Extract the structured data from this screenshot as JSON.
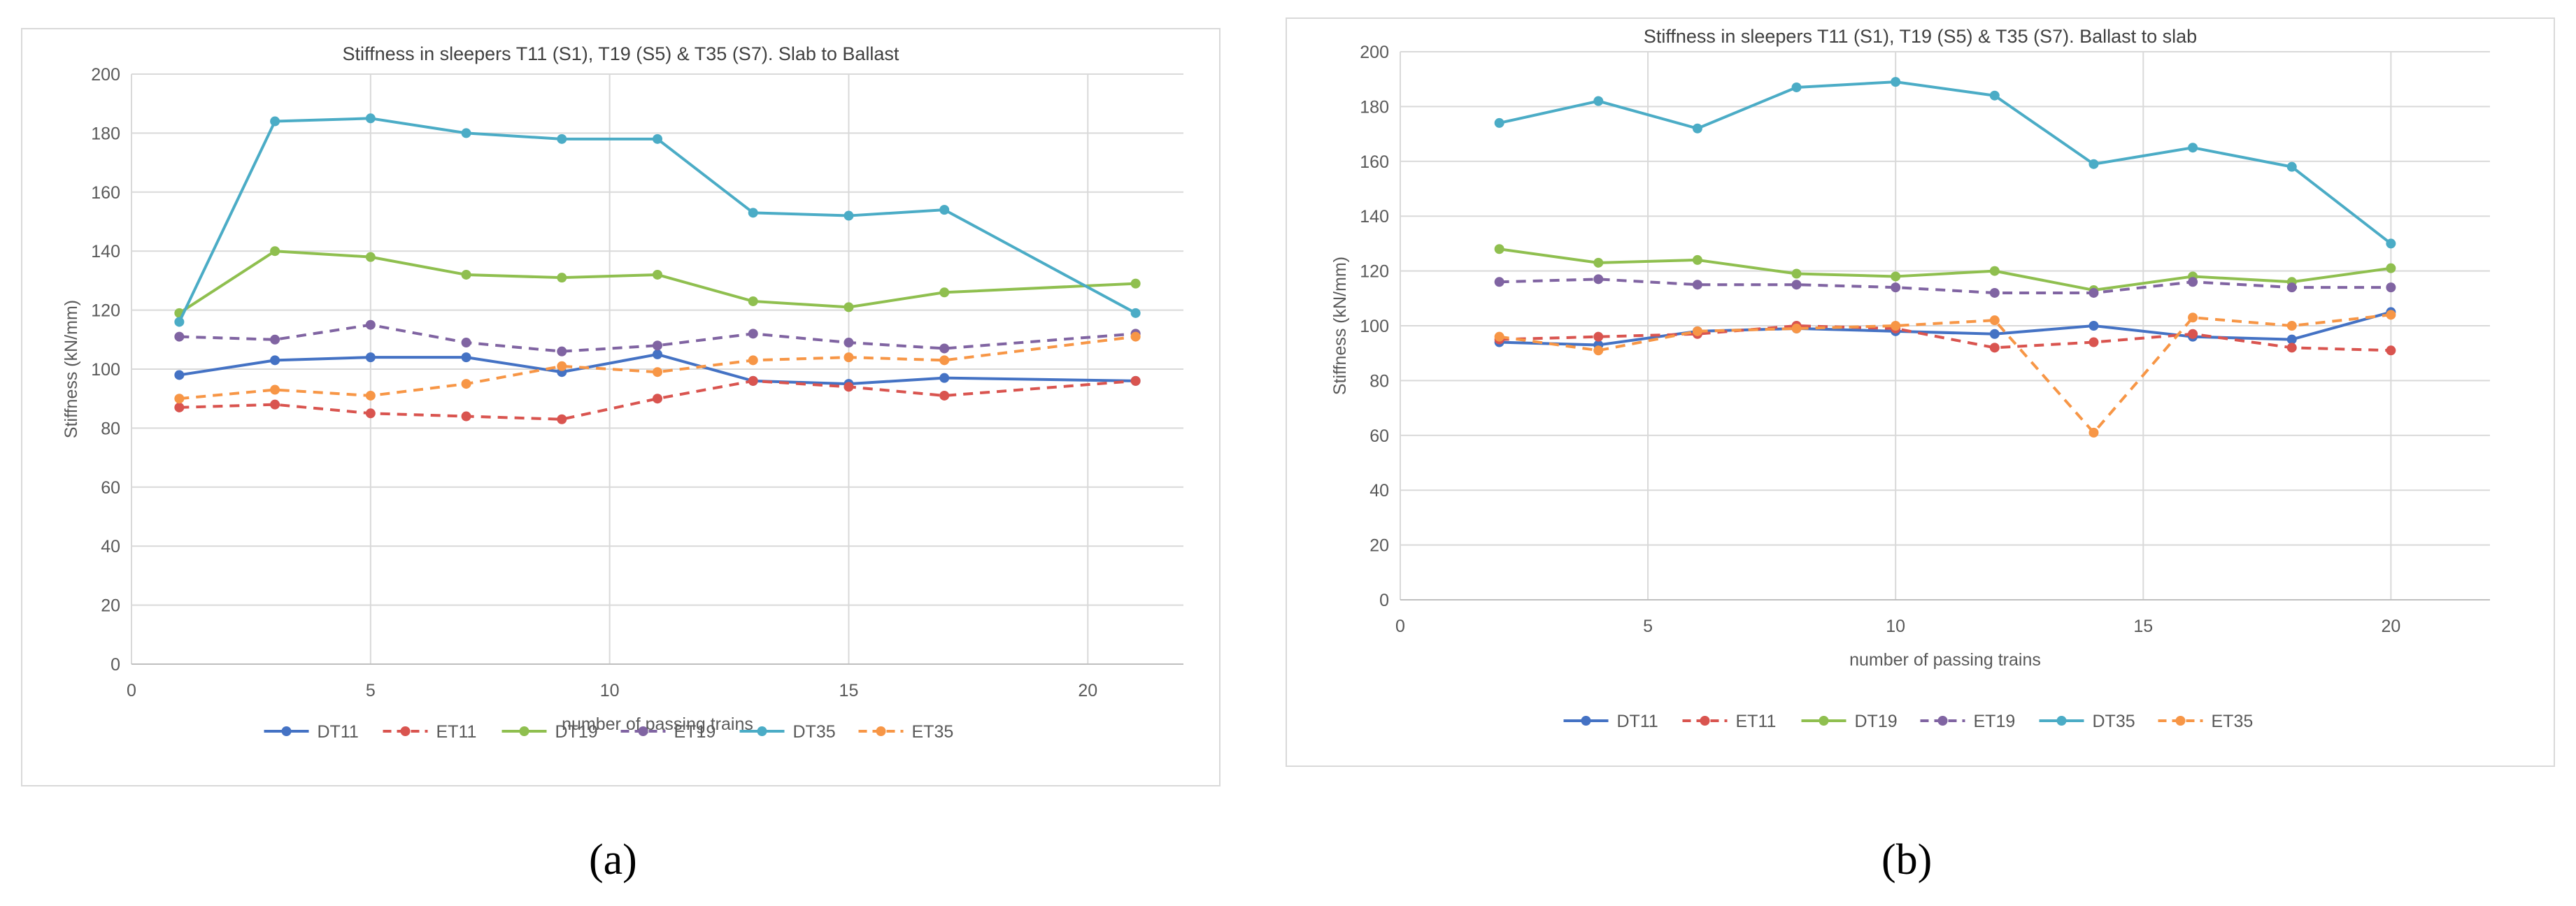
{
  "captions": {
    "a": "(a)",
    "b": "(b)"
  },
  "chart_data": [
    {
      "type": "line",
      "title": "Stiffness in sleepers T11 (S1), T19 (S5) & T35 (S7). Slab to Ballast",
      "xlabel": "number of passing trains",
      "ylabel": "Stiffness (kN/mm)",
      "xlim": [
        0,
        22
      ],
      "ylim": [
        0,
        200
      ],
      "xticks": [
        0,
        5,
        10,
        15,
        20
      ],
      "yticks": [
        0,
        20,
        40,
        60,
        80,
        100,
        120,
        140,
        160,
        180,
        200
      ],
      "grid": true,
      "legend": "bottom",
      "series": [
        {
          "name": "DT11",
          "color": "#4472c4",
          "dash": false,
          "x": [
            1,
            3,
            5,
            7,
            9,
            11,
            13,
            15,
            17,
            21
          ],
          "y": [
            98,
            103,
            104,
            104,
            99,
            105,
            96,
            95,
            97,
            96
          ]
        },
        {
          "name": "ET11",
          "color": "#d9544f",
          "dash": true,
          "x": [
            1,
            3,
            5,
            7,
            9,
            11,
            13,
            15,
            17,
            21
          ],
          "y": [
            87,
            88,
            85,
            84,
            83,
            90,
            96,
            94,
            91,
            96
          ]
        },
        {
          "name": "DT19",
          "color": "#8fbf4f",
          "dash": false,
          "x": [
            1,
            3,
            5,
            7,
            9,
            11,
            13,
            15,
            17,
            21
          ],
          "y": [
            119,
            140,
            138,
            132,
            131,
            132,
            123,
            121,
            126,
            129
          ]
        },
        {
          "name": "ET19",
          "color": "#8064a2",
          "dash": true,
          "x": [
            1,
            3,
            5,
            7,
            9,
            11,
            13,
            15,
            17,
            21
          ],
          "y": [
            111,
            110,
            115,
            109,
            106,
            108,
            112,
            109,
            107,
            112
          ]
        },
        {
          "name": "DT35",
          "color": "#4bacc6",
          "dash": false,
          "x": [
            1,
            3,
            5,
            7,
            9,
            11,
            13,
            15,
            17,
            21
          ],
          "y": [
            116,
            184,
            185,
            180,
            178,
            178,
            153,
            152,
            154,
            119
          ]
        },
        {
          "name": "ET35",
          "color": "#f79646",
          "dash": true,
          "x": [
            1,
            3,
            5,
            7,
            9,
            11,
            13,
            15,
            17,
            21
          ],
          "y": [
            90,
            93,
            91,
            95,
            101,
            99,
            103,
            104,
            103,
            111
          ]
        }
      ]
    },
    {
      "type": "line",
      "title": "Stiffness in sleepers T11 (S1), T19 (S5) & T35 (S7). Ballast to slab",
      "xlabel": "number of passing trains",
      "ylabel": "Stiffness (kN/mm)",
      "xlim": [
        0,
        22
      ],
      "ylim": [
        0,
        200
      ],
      "xticks": [
        0,
        5,
        10,
        15,
        20
      ],
      "yticks": [
        0,
        20,
        40,
        60,
        80,
        100,
        120,
        140,
        160,
        180,
        200
      ],
      "grid": true,
      "legend": "bottom",
      "series": [
        {
          "name": "DT11",
          "color": "#4472c4",
          "dash": false,
          "x": [
            2,
            4,
            6,
            8,
            10,
            12,
            14,
            16,
            18,
            20
          ],
          "y": [
            94,
            93,
            98,
            99,
            98,
            97,
            100,
            96,
            95,
            105
          ]
        },
        {
          "name": "ET11",
          "color": "#d9544f",
          "dash": true,
          "x": [
            2,
            4,
            6,
            8,
            10,
            12,
            14,
            16,
            18,
            20
          ],
          "y": [
            95,
            96,
            97,
            100,
            99,
            92,
            94,
            97,
            92,
            91
          ]
        },
        {
          "name": "DT19",
          "color": "#8fbf4f",
          "dash": false,
          "x": [
            2,
            4,
            6,
            8,
            10,
            12,
            14,
            16,
            18,
            20
          ],
          "y": [
            128,
            123,
            124,
            119,
            118,
            120,
            113,
            118,
            116,
            121
          ]
        },
        {
          "name": "ET19",
          "color": "#8064a2",
          "dash": true,
          "x": [
            2,
            4,
            6,
            8,
            10,
            12,
            14,
            16,
            18,
            20
          ],
          "y": [
            116,
            117,
            115,
            115,
            114,
            112,
            112,
            116,
            114,
            114
          ]
        },
        {
          "name": "DT35",
          "color": "#4bacc6",
          "dash": false,
          "x": [
            2,
            4,
            6,
            8,
            10,
            12,
            14,
            16,
            18,
            20
          ],
          "y": [
            174,
            182,
            172,
            187,
            189,
            184,
            159,
            165,
            158,
            130
          ]
        },
        {
          "name": "ET35",
          "color": "#f79646",
          "dash": true,
          "x": [
            2,
            4,
            6,
            8,
            10,
            12,
            14,
            16,
            18,
            20
          ],
          "y": [
            96,
            91,
            98,
            99,
            100,
            102,
            61,
            103,
            100,
            104
          ]
        }
      ]
    }
  ]
}
